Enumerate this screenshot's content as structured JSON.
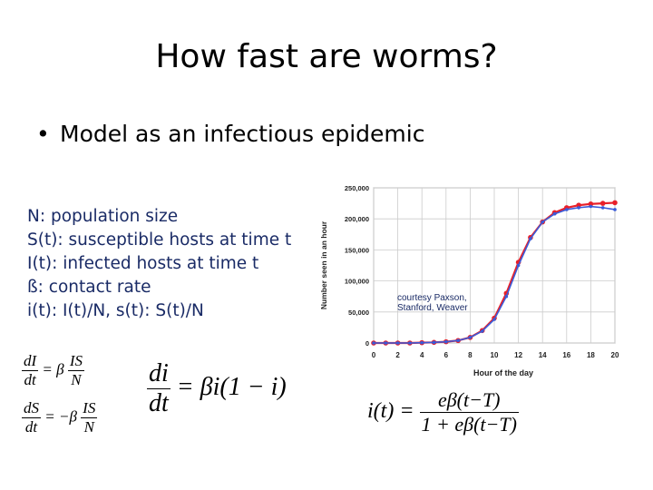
{
  "title": "How fast are worms?",
  "bullet": {
    "marker": "•",
    "text": "Model as an infectious epidemic"
  },
  "definitions": [
    "N: population size",
    "S(t): susceptible hosts at time t",
    "I(t): infected hosts at time t",
    "ß: contact rate",
    "i(t): I(t)/N, s(t): S(t)/N"
  ],
  "equations": {
    "dI_dt": {
      "lhs_num": "dI",
      "lhs_den": "dt",
      "op": "= β",
      "rhs_num": "IS",
      "rhs_den": "N"
    },
    "dS_dt": {
      "lhs_num": "dS",
      "lhs_den": "dt",
      "op": "= −β",
      "rhs_num": "IS",
      "rhs_den": "N"
    },
    "di_dt": {
      "lhs_num": "di",
      "lhs_den": "dt",
      "rhs": "= βi(1 − i)"
    },
    "i_t": {
      "lhs": "i(t) =",
      "num": "eβ(t−T)",
      "den": "1 + eβ(t−T)"
    }
  },
  "courtesy": [
    "courtesy Paxson,",
    "Stanford, Weaver"
  ],
  "colors": {
    "definitions": "#1a2b66",
    "series_red": "#e8202a",
    "series_blue": "#3a5bd8",
    "grid": "#cccccc"
  },
  "chart_data": {
    "type": "line",
    "xlabel": "Hour of the day",
    "ylabel": "Number seen in an hour",
    "xlim": [
      0,
      20
    ],
    "ylim": [
      0,
      250000
    ],
    "x_ticks": [
      0,
      2,
      4,
      6,
      8,
      10,
      12,
      14,
      16,
      18,
      20
    ],
    "y_ticks": [
      0,
      50000,
      100000,
      150000,
      200000,
      250000
    ],
    "y_tick_labels": [
      "0",
      "50,000",
      "100,000",
      "150,000",
      "200,000",
      "250,000"
    ],
    "grid": true,
    "series": [
      {
        "color": "#e8202a",
        "x": [
          0,
          1,
          2,
          3,
          4,
          5,
          6,
          7,
          8,
          9,
          10,
          11,
          12,
          13,
          14,
          15,
          16,
          17,
          18,
          19,
          20
        ],
        "y": [
          0,
          0,
          0,
          0,
          500,
          1000,
          2000,
          4000,
          9000,
          20000,
          40000,
          80000,
          130000,
          170000,
          195000,
          210000,
          218000,
          222000,
          224000,
          225000,
          226000
        ]
      },
      {
        "color": "#3a5bd8",
        "x": [
          0,
          1,
          2,
          3,
          4,
          5,
          6,
          7,
          8,
          9,
          10,
          11,
          12,
          13,
          14,
          15,
          16,
          17,
          18,
          19,
          20
        ],
        "y": [
          0,
          0,
          0,
          0,
          500,
          1000,
          2000,
          4000,
          9000,
          19000,
          38000,
          75000,
          125000,
          168000,
          195000,
          208000,
          215000,
          218000,
          220000,
          218000,
          215000
        ]
      }
    ]
  }
}
